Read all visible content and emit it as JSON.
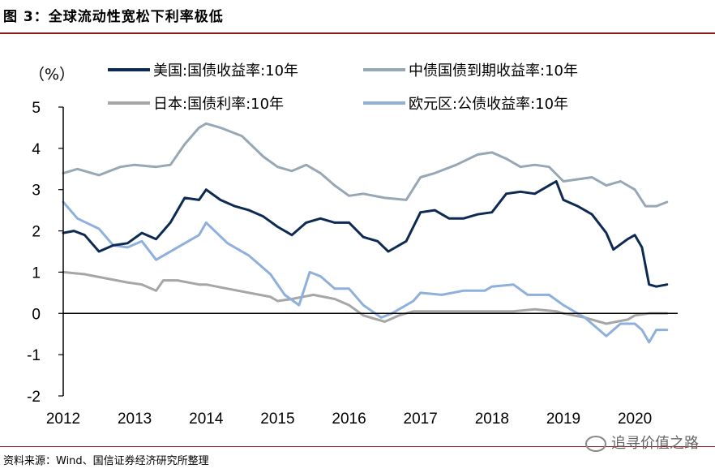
{
  "figure": {
    "title": "图 3：全球流动性宽松下利率极低",
    "source": "资料来源：Wind、国信证券经济研究所整理",
    "watermark": "追寻价值之路"
  },
  "chart_data": {
    "type": "line",
    "ylabel": "（%）",
    "xlabel": "",
    "ylim": [
      -2,
      5
    ],
    "yticks": [
      -2,
      -1,
      0,
      1,
      2,
      3,
      4,
      5
    ],
    "xlim": [
      2012.0,
      2020.6
    ],
    "xticks": [
      "2012",
      "2013",
      "2014",
      "2015",
      "2016",
      "2017",
      "2018",
      "2019",
      "2020"
    ],
    "grid": false,
    "legend_position": "top",
    "series": [
      {
        "name": "美国:国债收益率:10年",
        "color": "#0d2a52",
        "width": 3,
        "x": [
          2012.0,
          2012.15,
          2012.3,
          2012.5,
          2012.7,
          2012.9,
          2013.1,
          2013.3,
          2013.5,
          2013.7,
          2013.9,
          2014.0,
          2014.2,
          2014.4,
          2014.6,
          2014.8,
          2015.0,
          2015.2,
          2015.4,
          2015.6,
          2015.8,
          2016.0,
          2016.2,
          2016.4,
          2016.55,
          2016.8,
          2017.0,
          2017.2,
          2017.4,
          2017.6,
          2017.8,
          2018.0,
          2018.2,
          2018.4,
          2018.6,
          2018.8,
          2018.9,
          2019.0,
          2019.2,
          2019.4,
          2019.6,
          2019.7,
          2019.9,
          2020.0,
          2020.1,
          2020.2,
          2020.3,
          2020.45
        ],
        "y": [
          1.95,
          2.0,
          1.9,
          1.5,
          1.65,
          1.7,
          1.95,
          1.8,
          2.2,
          2.8,
          2.75,
          3.0,
          2.75,
          2.6,
          2.5,
          2.35,
          2.1,
          1.9,
          2.2,
          2.3,
          2.2,
          2.2,
          1.85,
          1.75,
          1.5,
          1.75,
          2.45,
          2.5,
          2.3,
          2.3,
          2.4,
          2.45,
          2.9,
          2.95,
          2.9,
          3.1,
          3.2,
          2.75,
          2.6,
          2.4,
          1.95,
          1.55,
          1.8,
          1.9,
          1.6,
          0.7,
          0.65,
          0.7
        ]
      },
      {
        "name": "中债国债到期收益率:10年",
        "color": "#98a7b5",
        "width": 3,
        "x": [
          2012.0,
          2012.2,
          2012.5,
          2012.8,
          2013.0,
          2013.3,
          2013.5,
          2013.7,
          2013.9,
          2014.0,
          2014.2,
          2014.5,
          2014.8,
          2015.0,
          2015.2,
          2015.4,
          2015.6,
          2015.8,
          2016.0,
          2016.2,
          2016.5,
          2016.8,
          2017.0,
          2017.2,
          2017.5,
          2017.8,
          2018.0,
          2018.2,
          2018.4,
          2018.6,
          2018.8,
          2019.0,
          2019.2,
          2019.4,
          2019.6,
          2019.8,
          2020.0,
          2020.15,
          2020.3,
          2020.45
        ],
        "y": [
          3.4,
          3.5,
          3.35,
          3.55,
          3.6,
          3.55,
          3.6,
          4.1,
          4.5,
          4.6,
          4.5,
          4.3,
          3.8,
          3.55,
          3.45,
          3.6,
          3.4,
          3.1,
          2.85,
          2.9,
          2.8,
          2.75,
          3.3,
          3.4,
          3.6,
          3.85,
          3.9,
          3.75,
          3.55,
          3.6,
          3.55,
          3.2,
          3.25,
          3.3,
          3.1,
          3.2,
          3.0,
          2.6,
          2.6,
          2.7
        ]
      },
      {
        "name": "日本:国债利率:10年",
        "color": "#a6a6a6",
        "width": 3,
        "x": [
          2012.0,
          2012.3,
          2012.6,
          2012.9,
          2013.1,
          2013.3,
          2013.4,
          2013.6,
          2013.9,
          2014.0,
          2014.3,
          2014.6,
          2014.9,
          2015.0,
          2015.2,
          2015.5,
          2015.8,
          2016.0,
          2016.2,
          2016.5,
          2016.7,
          2016.9,
          2017.2,
          2017.5,
          2017.8,
          2018.0,
          2018.3,
          2018.6,
          2018.9,
          2019.0,
          2019.3,
          2019.6,
          2019.9,
          2020.0,
          2020.2,
          2020.45
        ],
        "y": [
          1.0,
          0.95,
          0.85,
          0.75,
          0.7,
          0.55,
          0.8,
          0.8,
          0.7,
          0.7,
          0.6,
          0.5,
          0.4,
          0.3,
          0.35,
          0.45,
          0.35,
          0.2,
          -0.05,
          -0.2,
          -0.05,
          0.05,
          0.05,
          0.05,
          0.05,
          0.05,
          0.05,
          0.1,
          0.05,
          0.0,
          -0.1,
          -0.25,
          -0.15,
          -0.05,
          0.0,
          0.0
        ]
      },
      {
        "name": "欧元区:公债收益率:10年",
        "color": "#8fb0dc",
        "width": 3,
        "x": [
          2012.0,
          2012.2,
          2012.5,
          2012.7,
          2012.9,
          2013.1,
          2013.3,
          2013.6,
          2013.9,
          2014.0,
          2014.3,
          2014.6,
          2014.9,
          2015.1,
          2015.3,
          2015.45,
          2015.6,
          2015.8,
          2016.0,
          2016.2,
          2016.45,
          2016.6,
          2016.9,
          2017.0,
          2017.3,
          2017.6,
          2017.9,
          2018.0,
          2018.3,
          2018.5,
          2018.8,
          2019.0,
          2019.3,
          2019.6,
          2019.8,
          2020.0,
          2020.1,
          2020.2,
          2020.3,
          2020.45
        ],
        "y": [
          2.7,
          2.3,
          2.05,
          1.65,
          1.6,
          1.75,
          1.3,
          1.6,
          1.9,
          2.2,
          1.7,
          1.4,
          0.95,
          0.45,
          0.2,
          1.0,
          0.9,
          0.6,
          0.6,
          0.2,
          -0.1,
          0.0,
          0.3,
          0.5,
          0.45,
          0.55,
          0.55,
          0.65,
          0.7,
          0.45,
          0.45,
          0.2,
          -0.1,
          -0.55,
          -0.25,
          -0.25,
          -0.4,
          -0.7,
          -0.4,
          -0.4
        ]
      }
    ]
  }
}
